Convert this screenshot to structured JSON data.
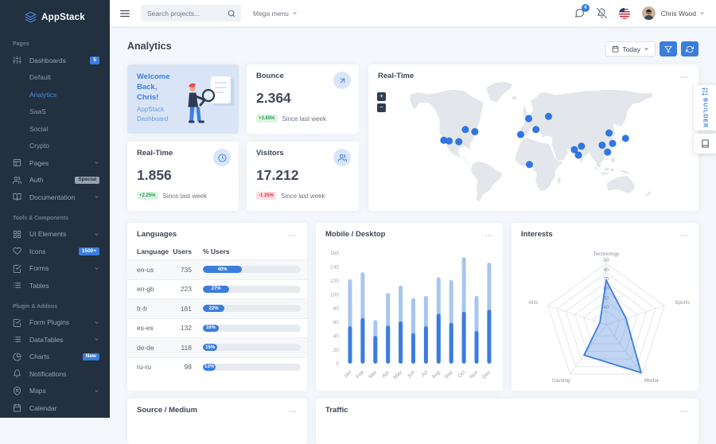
{
  "app": {
    "name": "AppStack"
  },
  "sidebar": {
    "sections": [
      {
        "label": "Pages",
        "items": [
          {
            "label": "Dashboards",
            "icon": "sliders",
            "badge": "5",
            "badge_style": "primary"
          },
          {
            "label": "Default",
            "sub": true
          },
          {
            "label": "Analytics",
            "sub": true,
            "active": true
          },
          {
            "label": "SaaS",
            "sub": true
          },
          {
            "label": "Social",
            "sub": true
          },
          {
            "label": "Crypto",
            "sub": true
          },
          {
            "label": "Pages",
            "icon": "layout",
            "chevron": true
          },
          {
            "label": "Auth",
            "icon": "users",
            "badge": "Special",
            "badge_style": "secondary"
          },
          {
            "label": "Documentation",
            "icon": "book-open",
            "chevron": true
          }
        ]
      },
      {
        "label": "Tools & Components",
        "items": [
          {
            "label": "UI Elements",
            "icon": "grid",
            "chevron": true
          },
          {
            "label": "Icons",
            "icon": "heart",
            "badge": "1500+",
            "badge_style": "primary"
          },
          {
            "label": "Forms",
            "icon": "check-square",
            "chevron": true
          },
          {
            "label": "Tables",
            "icon": "list"
          }
        ]
      },
      {
        "label": "Plugin & Addons",
        "items": [
          {
            "label": "Form Plugins",
            "icon": "check-square",
            "chevron": true
          },
          {
            "label": "DataTables",
            "icon": "list",
            "chevron": true
          },
          {
            "label": "Charts",
            "icon": "pie-chart",
            "badge": "New",
            "badge_style": "primary"
          },
          {
            "label": "Notifications",
            "icon": "bell"
          },
          {
            "label": "Maps",
            "icon": "map-pin",
            "chevron": true
          },
          {
            "label": "Calendar",
            "icon": "calendar"
          }
        ]
      }
    ]
  },
  "navbar": {
    "search_placeholder": "Search projects...",
    "mega_menu_label": "Mega menu",
    "notification_count": "4",
    "user_name": "Chris Wood"
  },
  "page": {
    "title": "Analytics",
    "period_label": "Today"
  },
  "cards": {
    "welcome": {
      "title": "Welcome Back, Chris!",
      "subtitle": "AppStack Dashboard"
    },
    "bounce": {
      "title": "Bounce",
      "value": "2.364",
      "delta": "+3.65%",
      "delta_class": "delta up",
      "caption": "Since last week",
      "icon": "arrow-up-right"
    },
    "realtime_stat": {
      "title": "Real-Time",
      "value": "1.856",
      "delta": "+2.25%",
      "delta_class": "delta up",
      "caption": "Since last week",
      "icon": "clock"
    },
    "visitors": {
      "title": "Visitors",
      "value": "17.212",
      "delta": "-1.25%",
      "delta_class": "delta down",
      "caption": "Since last week",
      "icon": "users"
    },
    "map": {
      "title": "Real-Time",
      "zoom_in": "+",
      "zoom_out": "−",
      "markers_lonlat": [
        [
          -118.2,
          34.1
        ],
        [
          -110.5,
          33.4
        ],
        [
          -96.8,
          32.8
        ],
        [
          -87.6,
          41.9
        ],
        [
          -74.0,
          40.7
        ],
        [
          -9.1,
          38.7
        ],
        [
          2.3,
          48.9
        ],
        [
          30.5,
          50.4
        ],
        [
          12.5,
          41.9
        ],
        [
          3.4,
          6.5
        ],
        [
          67.0,
          24.9
        ],
        [
          77.2,
          28.6
        ],
        [
          72.8,
          19.1
        ],
        [
          116.4,
          39.9
        ],
        [
          121.5,
          31.2
        ],
        [
          106.5,
          29.6
        ],
        [
          114.2,
          22.3
        ],
        [
          139.7,
          35.7
        ]
      ]
    },
    "source_medium": {
      "title": "Source / Medium"
    },
    "traffic": {
      "title": "Traffic"
    }
  },
  "builder": {
    "label": "BUILDER"
  },
  "colors": {
    "primary": "#3B7DDD",
    "sidebar": "#22303F",
    "body_bg": "#F4F7FB",
    "success": "#23A04D",
    "danger": "#DC3545",
    "bar_light": "#A7C6EF",
    "bar_dark": "#3B7DDD",
    "map_land": "#E3E7EB",
    "marker": "#2E77E8"
  },
  "chart_data": [
    {
      "type": "table",
      "title": "Languages",
      "columns": [
        "Language",
        "Users",
        "% Users"
      ],
      "rows": [
        {
          "language": "en-us",
          "users": 735,
          "pct": 40
        },
        {
          "language": "en-gb",
          "users": 223,
          "pct": 27
        },
        {
          "language": "fr-fr",
          "users": 181,
          "pct": 22
        },
        {
          "language": "es-es",
          "users": 132,
          "pct": 16
        },
        {
          "language": "de-de",
          "users": 118,
          "pct": 15
        },
        {
          "language": "ru-ru",
          "users": 98,
          "pct": 13
        }
      ]
    },
    {
      "type": "bar",
      "title": "Mobile / Desktop",
      "stacked": true,
      "categories": [
        "Jan",
        "Feb",
        "Mar",
        "Apr",
        "May",
        "Jun",
        "Jul",
        "Aug",
        "Sep",
        "Oct",
        "Nov",
        "Dec"
      ],
      "series": [
        {
          "name": "Mobile",
          "values": [
            54,
            66,
            40,
            55,
            61,
            44,
            54,
            72,
            59,
            75,
            47,
            78
          ]
        },
        {
          "name": "Desktop",
          "values": [
            68,
            66,
            23,
            47,
            52,
            51,
            44,
            53,
            62,
            79,
            51,
            68
          ]
        }
      ],
      "ylim": [
        0,
        160
      ],
      "ytick": 20,
      "legend": false
    },
    {
      "type": "radar",
      "title": "Interests",
      "categories": [
        "Technology",
        "Sports",
        "Media",
        "Gaming",
        "Arts"
      ],
      "values": [
        72,
        47,
        88,
        65,
        32
      ],
      "scale_min": 25,
      "scale_max": 90,
      "tick_labels": [
        90,
        80,
        70,
        60,
        50,
        40
      ]
    }
  ]
}
